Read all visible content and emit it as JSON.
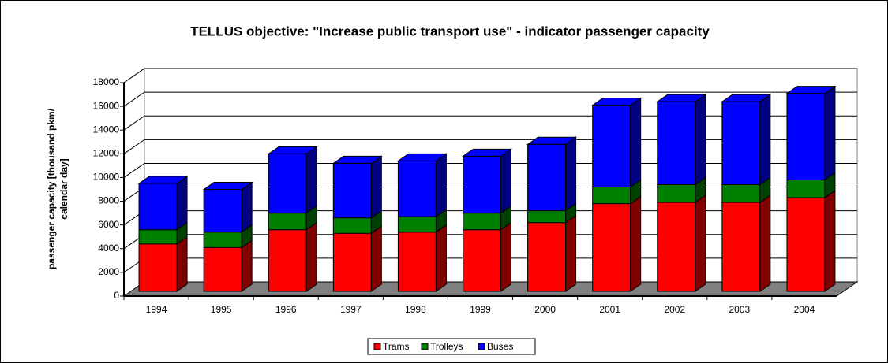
{
  "chart_data": {
    "type": "bar3d_stacked",
    "title": "TELLUS objective: \"Increase public transport use\" - indicator passenger capacity",
    "y_label": [
      "passenger capacity [thousand pkm/",
      "calendar day]"
    ],
    "categories": [
      "1994",
      "1995",
      "1996",
      "1997",
      "1998",
      "1999",
      "2000",
      "2001",
      "2002",
      "2003",
      "2004"
    ],
    "series": [
      {
        "name": "Trams",
        "color": "#ff0000",
        "values": [
          4000,
          3700,
          5200,
          4900,
          5000,
          5200,
          5800,
          7400,
          7500,
          7500,
          7900
        ]
      },
      {
        "name": "Trolleys",
        "color": "#008000",
        "values": [
          1200,
          1300,
          1400,
          1300,
          1300,
          1400,
          1000,
          1400,
          1500,
          1500,
          1500
        ]
      },
      {
        "name": "Buses",
        "color": "#0000ff",
        "values": [
          3900,
          3600,
          5000,
          4600,
          4700,
          4800,
          5600,
          6900,
          7000,
          7000,
          7300
        ]
      }
    ],
    "ylim": [
      0,
      18000
    ],
    "yticks": [
      0,
      2000,
      4000,
      6000,
      8000,
      10000,
      12000,
      14000,
      16000,
      18000
    ],
    "grid": true,
    "legend": "bottom"
  }
}
